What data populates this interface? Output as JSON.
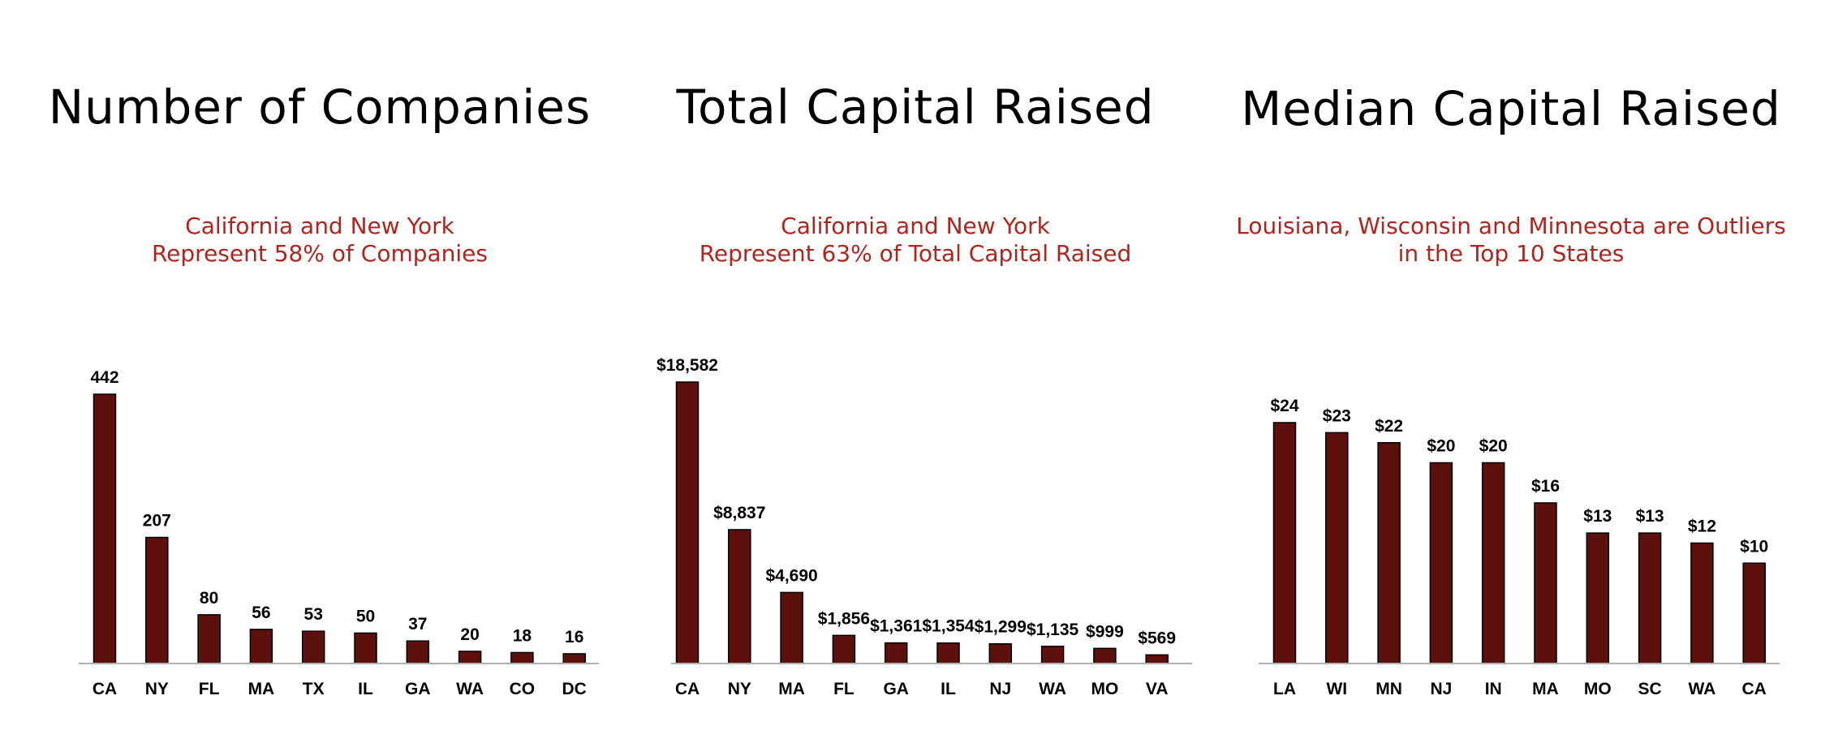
{
  "chart_data": [
    {
      "type": "bar",
      "title": "Number of Companies",
      "subtitle": [
        "California and New York",
        "Represent 58% of Companies"
      ],
      "categories": [
        "CA",
        "NY",
        "FL",
        "MA",
        "TX",
        "IL",
        "GA",
        "WA",
        "CO",
        "DC"
      ],
      "values": [
        442,
        207,
        80,
        56,
        53,
        50,
        37,
        20,
        18,
        16
      ],
      "value_labels": [
        "442",
        "207",
        "80",
        "56",
        "53",
        "50",
        "37",
        "20",
        "18",
        "16"
      ],
      "ylim": [
        0,
        442
      ],
      "grid": false,
      "bar_color": "#5c110c"
    },
    {
      "type": "bar",
      "title": "Total Capital Raised",
      "subtitle": [
        "California and New York",
        "Represent 63% of Total Capital Raised"
      ],
      "categories": [
        "CA",
        "NY",
        "MA",
        "FL",
        "GA",
        "IL",
        "NJ",
        "WA",
        "MO",
        "VA"
      ],
      "values": [
        18582,
        8837,
        4690,
        1856,
        1361,
        1354,
        1299,
        1135,
        999,
        569
      ],
      "value_labels": [
        "$18,582",
        "$8,837",
        "$4,690",
        "$1,856",
        "$1,361",
        "$1,354",
        "$1,299",
        "$1,135",
        "$999",
        "$569"
      ],
      "ylim": [
        0,
        18582
      ],
      "grid": false,
      "bar_color": "#5c110c"
    },
    {
      "type": "bar",
      "title": "Median Capital Raised",
      "subtitle": [
        "Louisiana, Wisconsin and Minnesota are Outliers",
        "in the Top 10 States"
      ],
      "categories": [
        "LA",
        "WI",
        "MN",
        "NJ",
        "IN",
        "MA",
        "MO",
        "SC",
        "WA",
        "CA"
      ],
      "values": [
        24,
        23,
        22,
        20,
        20,
        16,
        13,
        13,
        12,
        10
      ],
      "value_labels": [
        "$24",
        "$23",
        "$22",
        "$20",
        "$20",
        "$16",
        "$13",
        "$13",
        "$12",
        "$10"
      ],
      "ylim": [
        0,
        24
      ],
      "grid": false,
      "bar_color": "#5c110c"
    }
  ]
}
